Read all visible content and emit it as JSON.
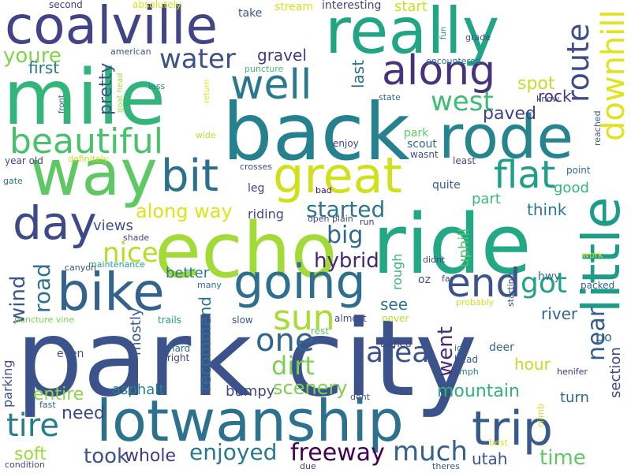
{
  "background": "#ffffff",
  "words": [
    {
      "text": "park city",
      "color": "#3b528b",
      "vertical": false
    },
    {
      "text": "lotwanship",
      "color": "#2c728e",
      "vertical": false
    },
    {
      "text": "echo",
      "color": "#a2da37",
      "vertical": false
    },
    {
      "text": "ride",
      "color": "#22a884",
      "vertical": false
    },
    {
      "text": "back",
      "color": "#26818e",
      "vertical": false
    },
    {
      "text": "mile",
      "color": "#31b57b",
      "vertical": false
    },
    {
      "text": "rode",
      "color": "#25848e",
      "vertical": false
    },
    {
      "text": "way",
      "color": "#5ec962",
      "vertical": false
    },
    {
      "text": "really",
      "color": "#21a685",
      "vertical": false
    },
    {
      "text": "coalville",
      "color": "#414487",
      "vertical": false
    },
    {
      "text": "bike",
      "color": "#33638d",
      "vertical": false
    },
    {
      "text": "going",
      "color": "#2e6e8e",
      "vertical": false
    },
    {
      "text": "great",
      "color": "#d0e11c",
      "vertical": false
    },
    {
      "text": "trip",
      "color": "#38598c",
      "vertical": false
    },
    {
      "text": "little",
      "color": "#1e9c89",
      "vertical": true
    },
    {
      "text": "downhill",
      "color": "#e1e318",
      "vertical": true
    },
    {
      "text": "along",
      "color": "#46337e",
      "vertical": false
    },
    {
      "text": "well",
      "color": "#2a788e",
      "vertical": false
    },
    {
      "text": "bit",
      "color": "#2d708e",
      "vertical": false
    },
    {
      "text": "day",
      "color": "#3e4989",
      "vertical": false
    },
    {
      "text": "end",
      "color": "#3b528b",
      "vertical": false
    },
    {
      "text": "beautiful",
      "color": "#4ac16d",
      "vertical": false
    },
    {
      "text": "route",
      "color": "#3e4c8a",
      "vertical": true
    },
    {
      "text": "flat",
      "color": "#1f9e89",
      "vertical": false
    },
    {
      "text": "sun",
      "color": "#a8db34",
      "vertical": false
    },
    {
      "text": "one",
      "color": "#32658e",
      "vertical": false
    },
    {
      "text": "water",
      "color": "#3b528b",
      "vertical": false
    },
    {
      "text": "west",
      "color": "#3dbc74",
      "vertical": false
    },
    {
      "text": "got",
      "color": "#1fa287",
      "vertical": false
    },
    {
      "text": "dirt",
      "color": "#7ad151",
      "vertical": false
    },
    {
      "text": "area",
      "color": "#3b528b",
      "vertical": false
    },
    {
      "text": "tire",
      "color": "#277f8e",
      "vertical": false
    },
    {
      "text": "freeway",
      "color": "#440154",
      "vertical": false
    },
    {
      "text": "much",
      "color": "#33628d",
      "vertical": false
    },
    {
      "text": "enjoyed",
      "color": "#2a788e",
      "vertical": false
    },
    {
      "text": "near",
      "color": "#365c8d",
      "vertical": true
    },
    {
      "text": "nice",
      "color": "#b5de2b",
      "vertical": false
    },
    {
      "text": "youre",
      "color": "#84d44b",
      "vertical": false
    },
    {
      "text": "wind",
      "color": "#39568c",
      "vertical": true
    },
    {
      "text": "road",
      "color": "#2d718e",
      "vertical": true
    },
    {
      "text": "went",
      "color": "#472c7a",
      "vertical": true
    },
    {
      "text": "big",
      "color": "#31688e",
      "vertical": false
    },
    {
      "text": "started",
      "color": "#2a768e",
      "vertical": false
    },
    {
      "text": "hybrid",
      "color": "#482576",
      "vertical": false
    },
    {
      "text": "mountain",
      "color": "#2fb47c",
      "vertical": false
    },
    {
      "text": "scenery",
      "color": "#7ad151",
      "vertical": false
    },
    {
      "text": "along way",
      "color": "#dde318",
      "vertical": false
    },
    {
      "text": "took",
      "color": "#3a548c",
      "vertical": false
    },
    {
      "text": "whole",
      "color": "#443983",
      "vertical": false
    },
    {
      "text": "time",
      "color": "#5ec962",
      "vertical": false
    },
    {
      "text": "pretty",
      "color": "#3b528b",
      "vertical": true
    },
    {
      "text": "paved",
      "color": "#424086",
      "vertical": false
    },
    {
      "text": "spot",
      "color": "#c2df23",
      "vertical": false
    },
    {
      "text": "rock",
      "color": "#453781",
      "vertical": false
    },
    {
      "text": "gravel",
      "color": "#443a83",
      "vertical": false
    },
    {
      "text": "first",
      "color": "#2a788e",
      "vertical": false
    },
    {
      "text": "last",
      "color": "#2c728e",
      "vertical": true
    },
    {
      "text": "start",
      "color": "#cde11d",
      "vertical": false
    },
    {
      "text": "interesting",
      "color": "#414487",
      "vertical": false
    },
    {
      "text": "stream",
      "color": "#d5e21a",
      "vertical": false
    },
    {
      "text": "take",
      "color": "#39558c",
      "vertical": false
    },
    {
      "text": "absolutely",
      "color": "#d2e21b",
      "vertical": false
    },
    {
      "text": "second",
      "color": "#443983",
      "vertical": false
    },
    {
      "text": "american",
      "color": "#3b528b",
      "vertical": false
    },
    {
      "text": "less",
      "color": "#24868e",
      "vertical": false
    },
    {
      "text": "goat head",
      "color": "#a0da39",
      "vertical": true
    },
    {
      "text": "front",
      "color": "#38588c",
      "vertical": true
    },
    {
      "text": "puncture",
      "color": "#3dbc74",
      "vertical": false
    },
    {
      "text": "return",
      "color": "#e5e419",
      "vertical": true
    },
    {
      "text": "fun",
      "color": "#26828e",
      "vertical": true
    },
    {
      "text": "grade",
      "color": "#3e4c8a",
      "vertical": false
    },
    {
      "text": "encountered",
      "color": "#29798e",
      "vertical": false
    },
    {
      "text": "state",
      "color": "#2e6e8e",
      "vertical": false
    },
    {
      "text": "know",
      "color": "#3e4989",
      "vertical": false
    },
    {
      "text": "reached",
      "color": "#38598c",
      "vertical": true
    },
    {
      "text": "scout",
      "color": "#31678e",
      "vertical": false
    },
    {
      "text": "wasnt",
      "color": "#39558c",
      "vertical": false
    },
    {
      "text": "park",
      "color": "#5ec962",
      "vertical": false
    },
    {
      "text": "enjoy",
      "color": "#404588",
      "vertical": false
    },
    {
      "text": "least",
      "color": "#3e4c8a",
      "vertical": false
    },
    {
      "text": "point",
      "color": "#2d708e",
      "vertical": false
    },
    {
      "text": "wide",
      "color": "#c0df25",
      "vertical": false
    },
    {
      "text": "year old",
      "color": "#3f4788",
      "vertical": false
    },
    {
      "text": "definitely",
      "color": "#c8e020",
      "vertical": false
    },
    {
      "text": "crosses",
      "color": "#3e4c8a",
      "vertical": false
    },
    {
      "text": "leg",
      "color": "#414487",
      "vertical": false
    },
    {
      "text": "quite",
      "color": "#34618d",
      "vertical": false
    },
    {
      "text": "part",
      "color": "#3aba76",
      "vertical": false
    },
    {
      "text": "uphill",
      "color": "#54c568",
      "vertical": true
    },
    {
      "text": "good",
      "color": "#34b679",
      "vertical": false
    },
    {
      "text": "think",
      "color": "#2a788e",
      "vertical": false
    },
    {
      "text": "gate",
      "color": "#2c728e",
      "vertical": false
    },
    {
      "text": "bad",
      "color": "#46085c",
      "vertical": false
    },
    {
      "text": "open plain",
      "color": "#414487",
      "vertical": false
    },
    {
      "text": "run",
      "color": "#46337e",
      "vertical": false
    },
    {
      "text": "riding",
      "color": "#3e4989",
      "vertical": false
    },
    {
      "text": "views",
      "color": "#3b528b",
      "vertical": false
    },
    {
      "text": "shade",
      "color": "#3f4788",
      "vertical": false
    },
    {
      "text": "maintenance",
      "color": "#1fa088",
      "vertical": false
    },
    {
      "text": "canyon",
      "color": "#3b528b",
      "vertical": false
    },
    {
      "text": "rough",
      "color": "#35b779",
      "vertical": true
    },
    {
      "text": "oz",
      "color": "#3b528b",
      "vertical": false
    },
    {
      "text": "didnt",
      "color": "#3f4788",
      "vertical": false
    },
    {
      "text": "far",
      "color": "#3e4989",
      "vertical": false
    },
    {
      "text": "work",
      "color": "#d2e21b",
      "vertical": false
    },
    {
      "text": "hwy",
      "color": "#2e6f8e",
      "vertical": false
    },
    {
      "text": "packed",
      "color": "#365d8d",
      "vertical": false
    },
    {
      "text": "better",
      "color": "#2a788e",
      "vertical": false
    },
    {
      "text": "many",
      "color": "#2c728e",
      "vertical": false
    },
    {
      "text": "mostly",
      "color": "#38598c",
      "vertical": true
    },
    {
      "text": "probably",
      "color": "#d0e11c",
      "vertical": false
    },
    {
      "text": "starting",
      "color": "#3b528b",
      "vertical": true
    },
    {
      "text": "river",
      "color": "#32648e",
      "vertical": false
    },
    {
      "text": "see",
      "color": "#2a768e",
      "vertical": false
    },
    {
      "text": "recommend",
      "color": "#2c728e",
      "vertical": true
    },
    {
      "text": "puncture vine",
      "color": "#7ad151",
      "vertical": false
    },
    {
      "text": "trails",
      "color": "#1fa088",
      "vertical": false
    },
    {
      "text": "slow",
      "color": "#3b528b",
      "vertical": false
    },
    {
      "text": "almost",
      "color": "#3e4c8a",
      "vertical": false
    },
    {
      "text": "never",
      "color": "#b5de2b",
      "vertical": false
    },
    {
      "text": "rest",
      "color": "#54c568",
      "vertical": false
    },
    {
      "text": "turned",
      "color": "#414487",
      "vertical": false
    },
    {
      "text": "go",
      "color": "#2f6c8e",
      "vertical": false
    },
    {
      "text": "section",
      "color": "#3f4788",
      "vertical": true
    },
    {
      "text": "even",
      "color": "#3b528b",
      "vertical": false
    },
    {
      "text": "hard",
      "color": "#2e6e8e",
      "vertical": false
    },
    {
      "text": "right",
      "color": "#424086",
      "vertical": false
    },
    {
      "text": "id",
      "color": "#2c728e",
      "vertical": false
    },
    {
      "text": "deer",
      "color": "#33638d",
      "vertical": false
    },
    {
      "text": "head",
      "color": "#3b528b",
      "vertical": false
    },
    {
      "text": "mph",
      "color": "#29798e",
      "vertical": false
    },
    {
      "text": "henifer",
      "color": "#46337e",
      "vertical": false
    },
    {
      "text": "hour",
      "color": "#bddf26",
      "vertical": false
    },
    {
      "text": "parking",
      "color": "#3e4c8a",
      "vertical": true
    },
    {
      "text": "entire",
      "color": "#8bd646",
      "vertical": false
    },
    {
      "text": "asphalt",
      "color": "#26828e",
      "vertical": false
    },
    {
      "text": "bumpy",
      "color": "#3e4989",
      "vertical": false
    },
    {
      "text": "fast",
      "color": "#33638d",
      "vertical": false
    },
    {
      "text": "dont",
      "color": "#3b528b",
      "vertical": false
    },
    {
      "text": "turn",
      "color": "#31688e",
      "vertical": false
    },
    {
      "text": "climb",
      "color": "#cde11d",
      "vertical": true
    },
    {
      "text": "need",
      "color": "#3e4989",
      "vertical": false
    },
    {
      "text": "soft",
      "color": "#9dd93b",
      "vertical": false
    },
    {
      "text": "utah",
      "color": "#3b528b",
      "vertical": false
    },
    {
      "text": "best",
      "color": "#d8e219",
      "vertical": false
    },
    {
      "text": "condition",
      "color": "#3e4c8a",
      "vertical": false
    },
    {
      "text": "due",
      "color": "#424086",
      "vertical": false
    },
    {
      "text": "theres",
      "color": "#365d8d",
      "vertical": false
    }
  ]
}
